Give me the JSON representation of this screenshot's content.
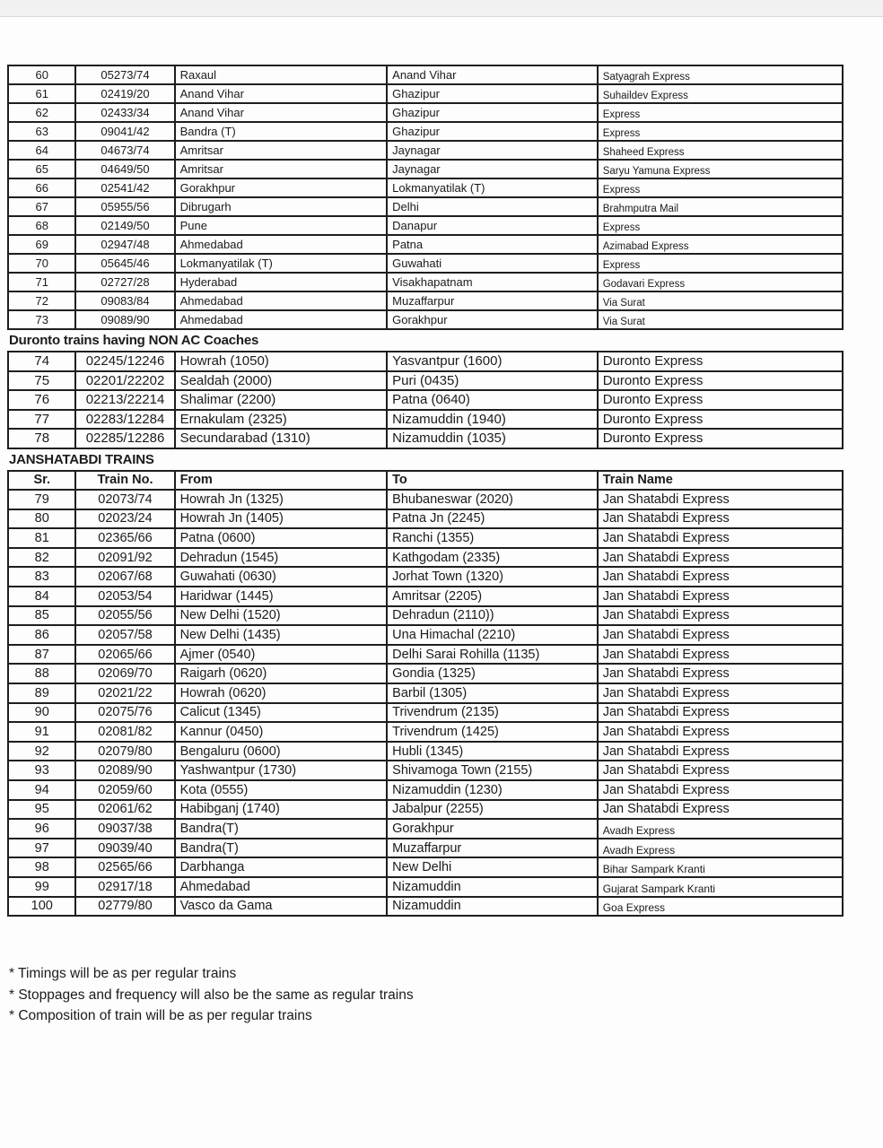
{
  "table": {
    "columns": [
      "Sr.",
      "Train No.",
      "From",
      "To",
      "Train Name"
    ]
  },
  "sections": [
    {
      "rows": [
        {
          "sr": "60",
          "no": "05273/74",
          "from": "Raxaul",
          "to": "Anand Vihar",
          "name": "Satyagrah Express"
        },
        {
          "sr": "61",
          "no": "02419/20",
          "from": "Anand Vihar",
          "to": "Ghazipur",
          "name": "Suhaildev Express"
        },
        {
          "sr": "62",
          "no": "02433/34",
          "from": "Anand Vihar",
          "to": "Ghazipur",
          "name": "Express"
        },
        {
          "sr": "63",
          "no": "09041/42",
          "from": "Bandra (T)",
          "to": "Ghazipur",
          "name": "Express"
        },
        {
          "sr": "64",
          "no": "04673/74",
          "from": "Amritsar",
          "to": "Jaynagar",
          "name": "Shaheed Express"
        },
        {
          "sr": "65",
          "no": "04649/50",
          "from": "Amritsar",
          "to": "Jaynagar",
          "name": "Saryu Yamuna Express"
        },
        {
          "sr": "66",
          "no": "02541/42",
          "from": "Gorakhpur",
          "to": "Lokmanyatilak (T)",
          "name": "Express"
        },
        {
          "sr": "67",
          "no": "05955/56",
          "from": "Dibrugarh",
          "to": "Delhi",
          "name": "Brahmputra Mail"
        },
        {
          "sr": "68",
          "no": "02149/50",
          "from": "Pune",
          "to": "Danapur",
          "name": "Express"
        },
        {
          "sr": "69",
          "no": "02947/48",
          "from": "Ahmedabad",
          "to": "Patna",
          "name": "Azimabad Express"
        },
        {
          "sr": "70",
          "no": "05645/46",
          "from": "Lokmanyatilak (T)",
          "to": "Guwahati",
          "name": "Express"
        },
        {
          "sr": "71",
          "no": "02727/28",
          "from": "Hyderabad",
          "to": "Visakhapatnam",
          "name": "Godavari Express"
        },
        {
          "sr": "72",
          "no": "09083/84",
          "from": "Ahmedabad",
          "to": "Muzaffarpur",
          "name": "Via Surat"
        },
        {
          "sr": "73",
          "no": "09089/90",
          "from": "Ahmedabad",
          "to": "Gorakhpur",
          "name": "Via Surat"
        }
      ]
    },
    {
      "title": "Duronto trains having NON AC Coaches",
      "rows": [
        {
          "sr": "74",
          "no": "02245/12246",
          "from": "Howrah (1050)",
          "to": "Yasvantpur (1600)",
          "name": "Duronto Express"
        },
        {
          "sr": "75",
          "no": "02201/22202",
          "from": "Sealdah (2000)",
          "to": "Puri (0435)",
          "name": "Duronto Express"
        },
        {
          "sr": "76",
          "no": "02213/22214",
          "from": "Shalimar (2200)",
          "to": "Patna (0640)",
          "name": "Duronto Express"
        },
        {
          "sr": "77",
          "no": "02283/12284",
          "from": "Ernakulam (2325)",
          "to": "Nizamuddin (1940)",
          "name": "Duronto Express"
        },
        {
          "sr": "78",
          "no": "02285/12286",
          "from": "Secundarabad (1310)",
          "to": "Nizamuddin (1035)",
          "name": "Duronto Express"
        }
      ]
    },
    {
      "title": "JANSHATABDI TRAINS",
      "rows": [
        {
          "sr": "79",
          "no": "02073/74",
          "from": "Howrah Jn (1325)",
          "to": "Bhubaneswar (2020)",
          "name": "Jan Shatabdi Express"
        },
        {
          "sr": "80",
          "no": "02023/24",
          "from": "Howrah Jn (1405)",
          "to": "Patna Jn (2245)",
          "name": "Jan Shatabdi Express"
        },
        {
          "sr": "81",
          "no": "02365/66",
          "from": "Patna (0600)",
          "to": "Ranchi (1355)",
          "name": "Jan Shatabdi Express"
        },
        {
          "sr": "82",
          "no": "02091/92",
          "from": "Dehradun (1545)",
          "to": "Kathgodam (2335)",
          "name": "Jan Shatabdi Express"
        },
        {
          "sr": "83",
          "no": "02067/68",
          "from": "Guwahati (0630)",
          "to": "Jorhat Town (1320)",
          "name": "Jan Shatabdi Express"
        },
        {
          "sr": "84",
          "no": "02053/54",
          "from": "Haridwar (1445)",
          "to": "Amritsar (2205)",
          "name": "Jan Shatabdi Express"
        },
        {
          "sr": "85",
          "no": "02055/56",
          "from": "New Delhi (1520)",
          "to": "Dehradun (2110))",
          "name": "Jan Shatabdi Express"
        },
        {
          "sr": "86",
          "no": "02057/58",
          "from": "New Delhi (1435)",
          "to": "Una Himachal (2210)",
          "name": "Jan Shatabdi Express"
        },
        {
          "sr": "87",
          "no": "02065/66",
          "from": "Ajmer (0540)",
          "to": "Delhi Sarai Rohilla (1135)",
          "name": "Jan Shatabdi Express"
        },
        {
          "sr": "88",
          "no": "02069/70",
          "from": "Raigarh (0620)",
          "to": "Gondia (1325)",
          "name": "Jan Shatabdi Express"
        },
        {
          "sr": "89",
          "no": "02021/22",
          "from": "Howrah (0620)",
          "to": "Barbil (1305)",
          "name": "Jan Shatabdi Express"
        },
        {
          "sr": "90",
          "no": "02075/76",
          "from": "Calicut (1345)",
          "to": "Trivendrum (2135)",
          "name": "Jan Shatabdi Express"
        },
        {
          "sr": "91",
          "no": "02081/82",
          "from": "Kannur (0450)",
          "to": "Trivendrum (1425)",
          "name": "Jan Shatabdi Express"
        },
        {
          "sr": "92",
          "no": "02079/80",
          "from": "Bengaluru (0600)",
          "to": "Hubli (1345)",
          "name": "Jan Shatabdi Express"
        },
        {
          "sr": "93",
          "no": "02089/90",
          "from": "Yashwantpur (1730)",
          "to": "Shivamoga Town (2155)",
          "name": "Jan Shatabdi Express"
        },
        {
          "sr": "94",
          "no": "02059/60",
          "from": "Kota (0555)",
          "to": "Nizamuddin (1230)",
          "name": "Jan Shatabdi Express"
        },
        {
          "sr": "95",
          "no": "02061/62",
          "from": "Habibganj (1740)",
          "to": "Jabalpur (2255)",
          "name": "Jan Shatabdi Express"
        }
      ]
    },
    {
      "rows": [
        {
          "sr": "96",
          "no": "09037/38",
          "from": "Bandra(T)",
          "to": "Gorakhpur",
          "name": "Avadh Express"
        },
        {
          "sr": "97",
          "no": "09039/40",
          "from": "Bandra(T)",
          "to": "Muzaffarpur",
          "name": "Avadh Express"
        },
        {
          "sr": "98",
          "no": "02565/66",
          "from": "Darbhanga",
          "to": "New Delhi",
          "name": "Bihar Sampark Kranti"
        },
        {
          "sr": "99",
          "no": "02917/18",
          "from": "Ahmedabad",
          "to": "Nizamuddin",
          "name": "Gujarat Sampark Kranti"
        },
        {
          "sr": "100",
          "no": "02779/80",
          "from": "Vasco da Gama",
          "to": "Nizamuddin",
          "name": "Goa Express"
        }
      ]
    }
  ],
  "footnotes": [
    "* Timings will be as per regular trains",
    "* Stoppages and frequency will also be the same as regular trains",
    "* Composition of train will be as per regular trains"
  ]
}
